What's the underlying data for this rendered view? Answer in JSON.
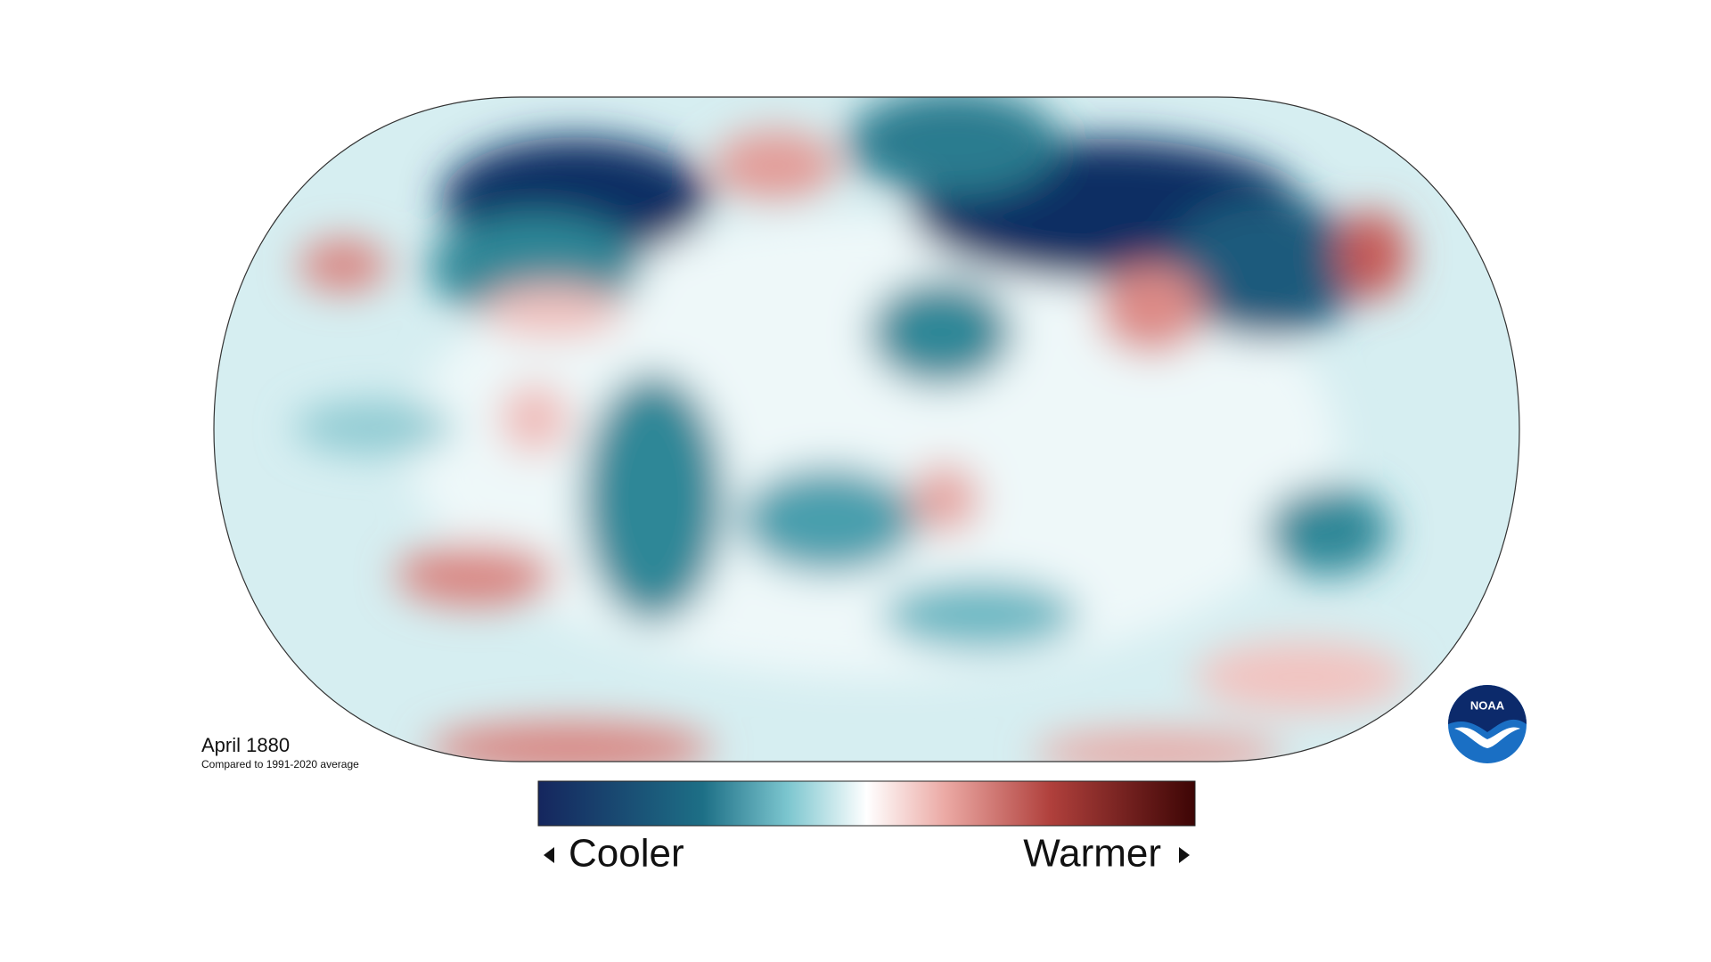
{
  "map": {
    "title": "April 1880",
    "subtitle": "Compared to 1991-2020 average"
  },
  "legend": {
    "low_label": "Cooler",
    "high_label": "Warmer"
  },
  "logo": {
    "text": "NOAA"
  }
}
